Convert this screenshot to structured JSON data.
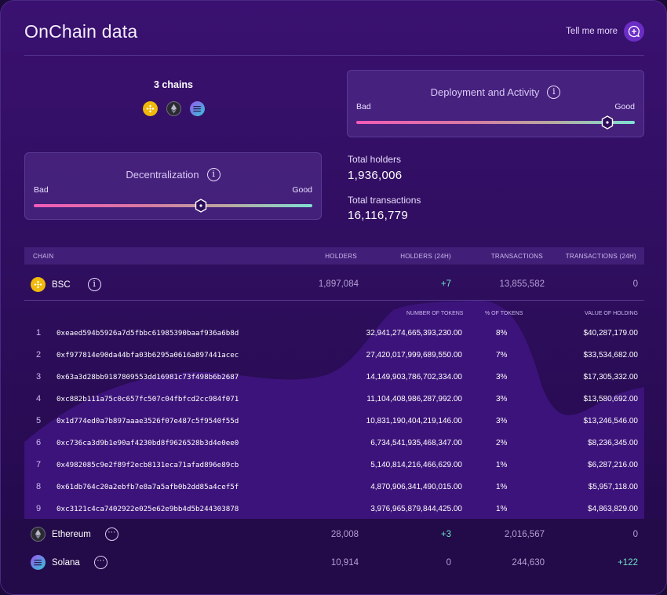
{
  "header": {
    "title": "OnChain data",
    "tell_more": "Tell me more"
  },
  "chains": {
    "title": "3 chains",
    "icons": [
      "bnb-icon",
      "ethereum-icon",
      "solana-icon"
    ]
  },
  "deployment": {
    "title": "Deployment and Activity",
    "bad": "Bad",
    "good": "Good",
    "level": 0.9
  },
  "decentralization": {
    "title": "Decentralization",
    "bad": "Bad",
    "good": "Good",
    "level": 0.6
  },
  "stats": {
    "holders_label": "Total holders",
    "holders_value": "1,936,006",
    "tx_label": "Total transactions",
    "tx_value": "16,116,779"
  },
  "table": {
    "headers": {
      "chain": "CHAIN",
      "holders": "HOLDERS",
      "holders24": "HOLDERS (24H)",
      "tx": "TRANSACTIONS",
      "tx24": "TRANSACTIONS (24H)"
    },
    "rows": [
      {
        "name": "BSC",
        "holders": "1,897,084",
        "holders24": "+7",
        "tx": "13,855,582",
        "tx24": "0"
      },
      {
        "name": "Ethereum",
        "holders": "28,008",
        "holders24": "+3",
        "tx": "2,016,567",
        "tx24": "0"
      },
      {
        "name": "Solana",
        "holders": "10,914",
        "holders24": "0",
        "tx": "244,630",
        "tx24": "+122"
      }
    ]
  },
  "holders_table": {
    "headers": {
      "tokens": "NUMBER OF TOKENS",
      "pct": "% OF TOKENS",
      "value": "VALUE OF HOLDING"
    },
    "rows": [
      {
        "n": "1",
        "addr": "0xeaed594b5926a7d5fbbc61985390baaf936a6b8d",
        "tokens": "32,941,274,665,393,230.00",
        "pct": "8%",
        "value": "$40,287,179.00"
      },
      {
        "n": "2",
        "addr": "0xf977814e90da44bfa03b6295a0616a897441acec",
        "tokens": "27,420,017,999,689,550.00",
        "pct": "7%",
        "value": "$33,534,682.00"
      },
      {
        "n": "3",
        "addr": "0x63a3d28bb9187809553dd16981c73f498b6b2687",
        "tokens": "14,149,903,786,702,334.00",
        "pct": "3%",
        "value": "$17,305,332.00"
      },
      {
        "n": "4",
        "addr": "0xc882b111a75c0c657fc507c04fbfcd2cc984f071",
        "tokens": "11,104,408,986,287,992.00",
        "pct": "3%",
        "value": "$13,580,692.00"
      },
      {
        "n": "5",
        "addr": "0x1d774ed0a7b897aaae3526f07e487c5f9540f55d",
        "tokens": "10,831,190,404,219,146.00",
        "pct": "3%",
        "value": "$13,246,546.00"
      },
      {
        "n": "6",
        "addr": "0xc736ca3d9b1e90af4230bd8f9626528b3d4e0ee0",
        "tokens": "6,734,541,935,468,347.00",
        "pct": "2%",
        "value": "$8,236,345.00"
      },
      {
        "n": "7",
        "addr": "0x4982085c9e2f89f2ecb8131eca71afad896e89cb",
        "tokens": "5,140,814,216,466,629.00",
        "pct": "1%",
        "value": "$6,287,216.00"
      },
      {
        "n": "8",
        "addr": "0x61db764c20a2ebfb7e8a7a5afb0b2dd85a4cef5f",
        "tokens": "4,870,906,341,490,015.00",
        "pct": "1%",
        "value": "$5,957,118.00"
      },
      {
        "n": "9",
        "addr": "0xc3121c4ca7402922e025e62e9bb4d5b244303878",
        "tokens": "3,976,965,879,844,425.00",
        "pct": "1%",
        "value": "$4,863,829.00"
      }
    ]
  },
  "colors": {
    "accent": "#6b2dc6",
    "green": "#6ee3c9",
    "bg": "#2c0d5a"
  }
}
